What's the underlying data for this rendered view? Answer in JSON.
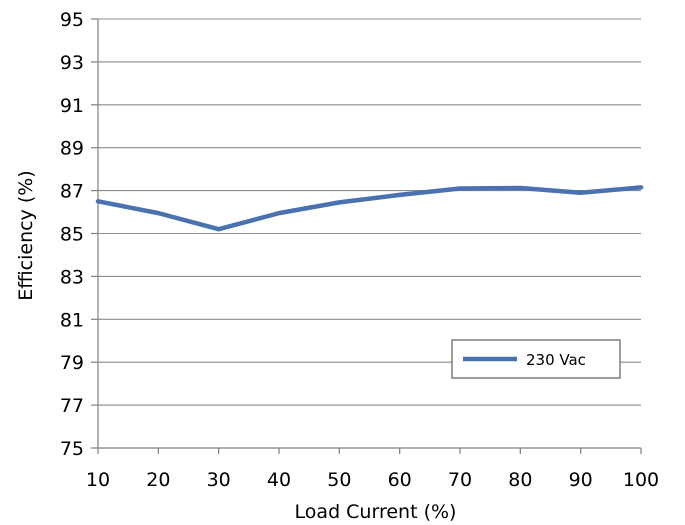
{
  "chart_data": {
    "type": "line",
    "title": "",
    "xlabel": "Load Current  (%)",
    "ylabel": "Efficiency (%)",
    "xlim": [
      10,
      100
    ],
    "ylim": [
      75,
      95
    ],
    "x_ticks": [
      10,
      20,
      30,
      40,
      50,
      60,
      70,
      80,
      90,
      100
    ],
    "y_ticks": [
      75,
      77,
      79,
      81,
      83,
      85,
      87,
      89,
      91,
      93,
      95
    ],
    "grid": "horizontal",
    "legend_position": "bottom-right",
    "series": [
      {
        "name": "230 Vac",
        "color": "#4a72b0",
        "x": [
          10,
          20,
          30,
          40,
          50,
          60,
          70,
          80,
          90,
          100
        ],
        "y": [
          86.5,
          85.95,
          85.2,
          85.95,
          86.45,
          86.8,
          87.1,
          87.12,
          86.9,
          87.15
        ]
      }
    ]
  }
}
